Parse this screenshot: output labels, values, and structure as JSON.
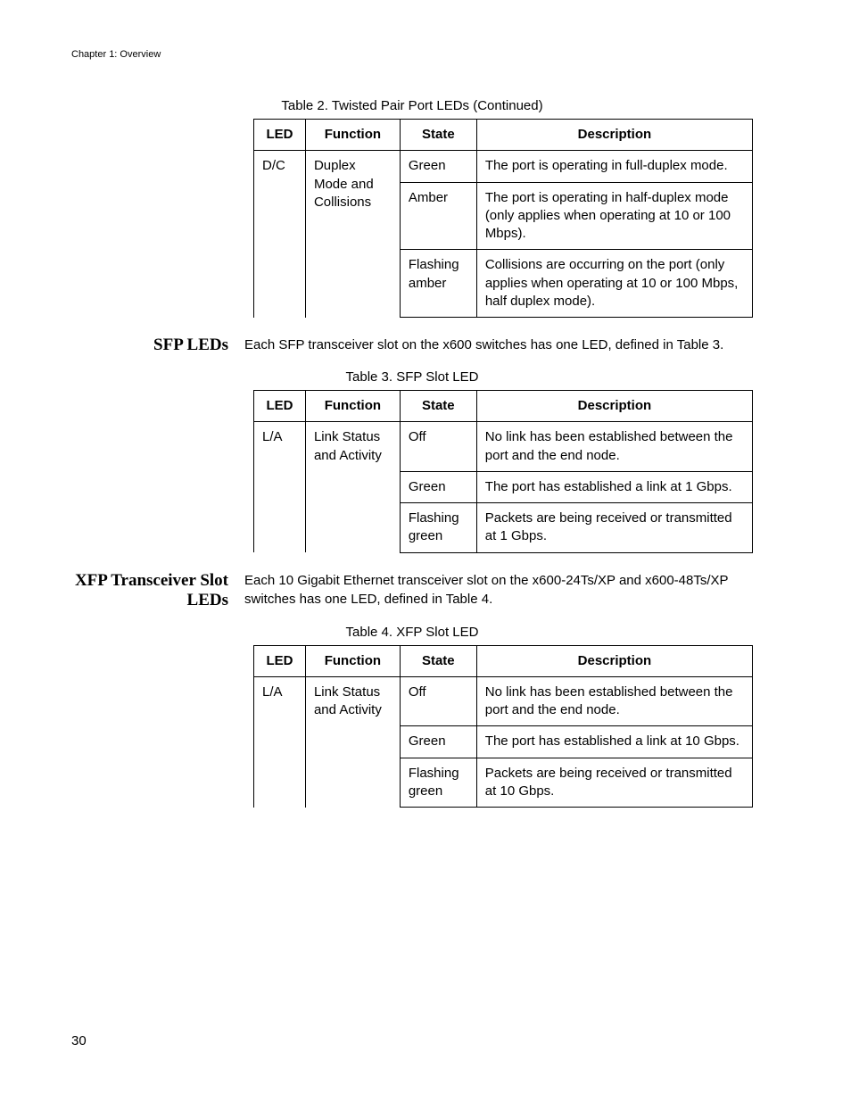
{
  "chapterHeader": "Chapter 1: Overview",
  "pageNumber": "30",
  "table2": {
    "caption": "Table 2.  Twisted Pair Port LEDs (Continued)",
    "headers": {
      "led": "LED",
      "function": "Function",
      "state": "State",
      "description": "Description"
    },
    "rows": {
      "led": "D/C",
      "function": "Duplex Mode and Collisions",
      "r1_state": "Green",
      "r1_desc": "The port is operating in full-duplex mode.",
      "r2_state": "Amber",
      "r2_desc": "The port is operating in half-duplex mode (only applies when operating at 10 or 100 Mbps).",
      "r3_state": "Flashing amber",
      "r3_desc": "Collisions are occurring on the port (only applies when operating at 10 or 100 Mbps, half duplex mode)."
    }
  },
  "section1": {
    "heading": "SFP LEDs",
    "text": "Each SFP transceiver slot on the x600 switches has one LED, defined in Table 3."
  },
  "table3": {
    "caption": "Table 3. SFP Slot LED",
    "headers": {
      "led": "LED",
      "function": "Function",
      "state": "State",
      "description": "Description"
    },
    "rows": {
      "led": "L/A",
      "function": "Link Status and Activity",
      "r1_state": "Off",
      "r1_desc": "No link has been established between the port and the end node.",
      "r2_state": "Green",
      "r2_desc": "The port has established a link at 1 Gbps.",
      "r3_state": "Flashing green",
      "r3_desc": "Packets are being received or transmitted at 1 Gbps."
    }
  },
  "section2": {
    "heading": "XFP Transceiver Slot LEDs",
    "text": "Each 10 Gigabit Ethernet transceiver slot on the x600-24Ts/XP and x600-48Ts/XP switches has one LED, defined in Table 4."
  },
  "table4": {
    "caption": "Table 4. XFP Slot LED",
    "headers": {
      "led": "LED",
      "function": "Function",
      "state": "State",
      "description": "Description"
    },
    "rows": {
      "led": "L/A",
      "function": "Link Status and Activity",
      "r1_state": "Off",
      "r1_desc": "No link has been established between the port and the end node.",
      "r2_state": "Green",
      "r2_desc": "The port has established a link at 10 Gbps.",
      "r3_state": "Flashing green",
      "r3_desc": "Packets are being received or transmitted at 10 Gbps."
    }
  }
}
